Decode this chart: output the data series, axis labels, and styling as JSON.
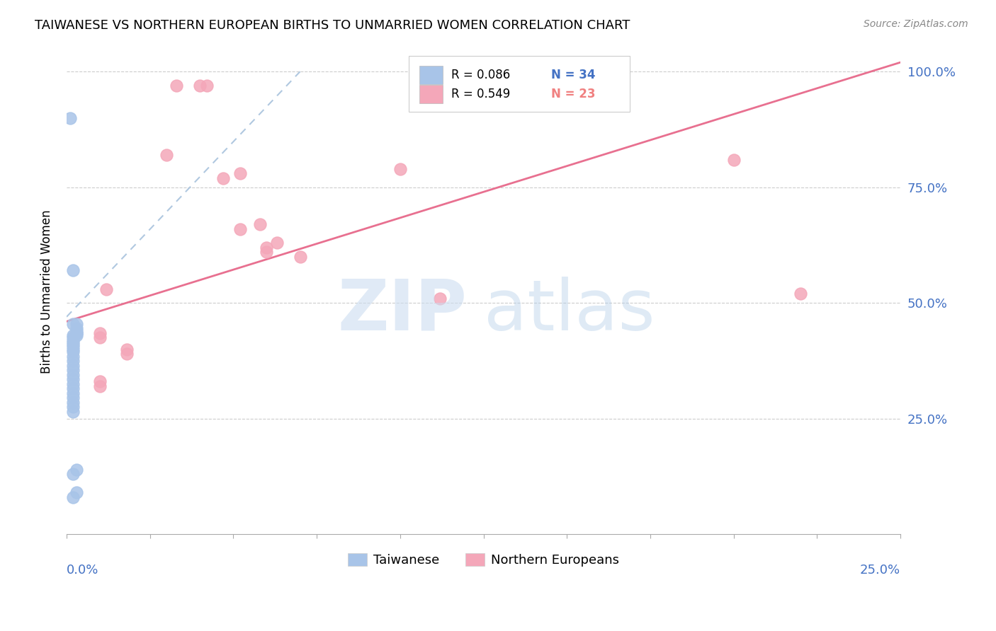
{
  "title": "TAIWANESE VS NORTHERN EUROPEAN BIRTHS TO UNMARRIED WOMEN CORRELATION CHART",
  "source": "Source: ZipAtlas.com",
  "ylabel": "Births to Unmarried Women",
  "ytick_values": [
    0.25,
    0.5,
    0.75,
    1.0
  ],
  "xlim": [
    0.0,
    0.25
  ],
  "ylim": [
    0.0,
    1.05
  ],
  "taiwanese_color": "#a8c4e8",
  "northern_european_color": "#f4a7b9",
  "trendline1_color": "#a0b8d8",
  "trendline2_color": "#e87090",
  "taiwanese_points": [
    [
      0.001,
      0.9
    ],
    [
      0.002,
      0.57
    ],
    [
      0.002,
      0.455
    ],
    [
      0.003,
      0.445
    ],
    [
      0.003,
      0.435
    ],
    [
      0.002,
      0.43
    ],
    [
      0.002,
      0.425
    ],
    [
      0.002,
      0.42
    ],
    [
      0.002,
      0.415
    ],
    [
      0.002,
      0.41
    ],
    [
      0.002,
      0.405
    ],
    [
      0.002,
      0.4
    ],
    [
      0.002,
      0.395
    ],
    [
      0.002,
      0.385
    ],
    [
      0.002,
      0.375
    ],
    [
      0.002,
      0.365
    ],
    [
      0.002,
      0.355
    ],
    [
      0.002,
      0.345
    ],
    [
      0.002,
      0.335
    ],
    [
      0.002,
      0.325
    ],
    [
      0.002,
      0.315
    ],
    [
      0.002,
      0.305
    ],
    [
      0.002,
      0.295
    ],
    [
      0.002,
      0.285
    ],
    [
      0.002,
      0.275
    ],
    [
      0.002,
      0.265
    ],
    [
      0.003,
      0.455
    ],
    [
      0.003,
      0.44
    ],
    [
      0.003,
      0.435
    ],
    [
      0.003,
      0.43
    ],
    [
      0.003,
      0.14
    ],
    [
      0.003,
      0.09
    ],
    [
      0.002,
      0.13
    ],
    [
      0.002,
      0.08
    ]
  ],
  "northern_european_points": [
    [
      0.033,
      0.97
    ],
    [
      0.04,
      0.97
    ],
    [
      0.042,
      0.97
    ],
    [
      0.03,
      0.82
    ],
    [
      0.052,
      0.78
    ],
    [
      0.047,
      0.77
    ],
    [
      0.1,
      0.79
    ],
    [
      0.2,
      0.81
    ],
    [
      0.058,
      0.67
    ],
    [
      0.052,
      0.66
    ],
    [
      0.063,
      0.63
    ],
    [
      0.06,
      0.62
    ],
    [
      0.06,
      0.61
    ],
    [
      0.07,
      0.6
    ],
    [
      0.012,
      0.53
    ],
    [
      0.22,
      0.52
    ],
    [
      0.112,
      0.51
    ],
    [
      0.01,
      0.435
    ],
    [
      0.01,
      0.425
    ],
    [
      0.018,
      0.4
    ],
    [
      0.018,
      0.39
    ],
    [
      0.01,
      0.33
    ],
    [
      0.01,
      0.32
    ]
  ],
  "tw_trendline": [
    0.0,
    0.47,
    0.07,
    1.0
  ],
  "ne_trendline": [
    0.0,
    0.46,
    0.25,
    1.02
  ]
}
